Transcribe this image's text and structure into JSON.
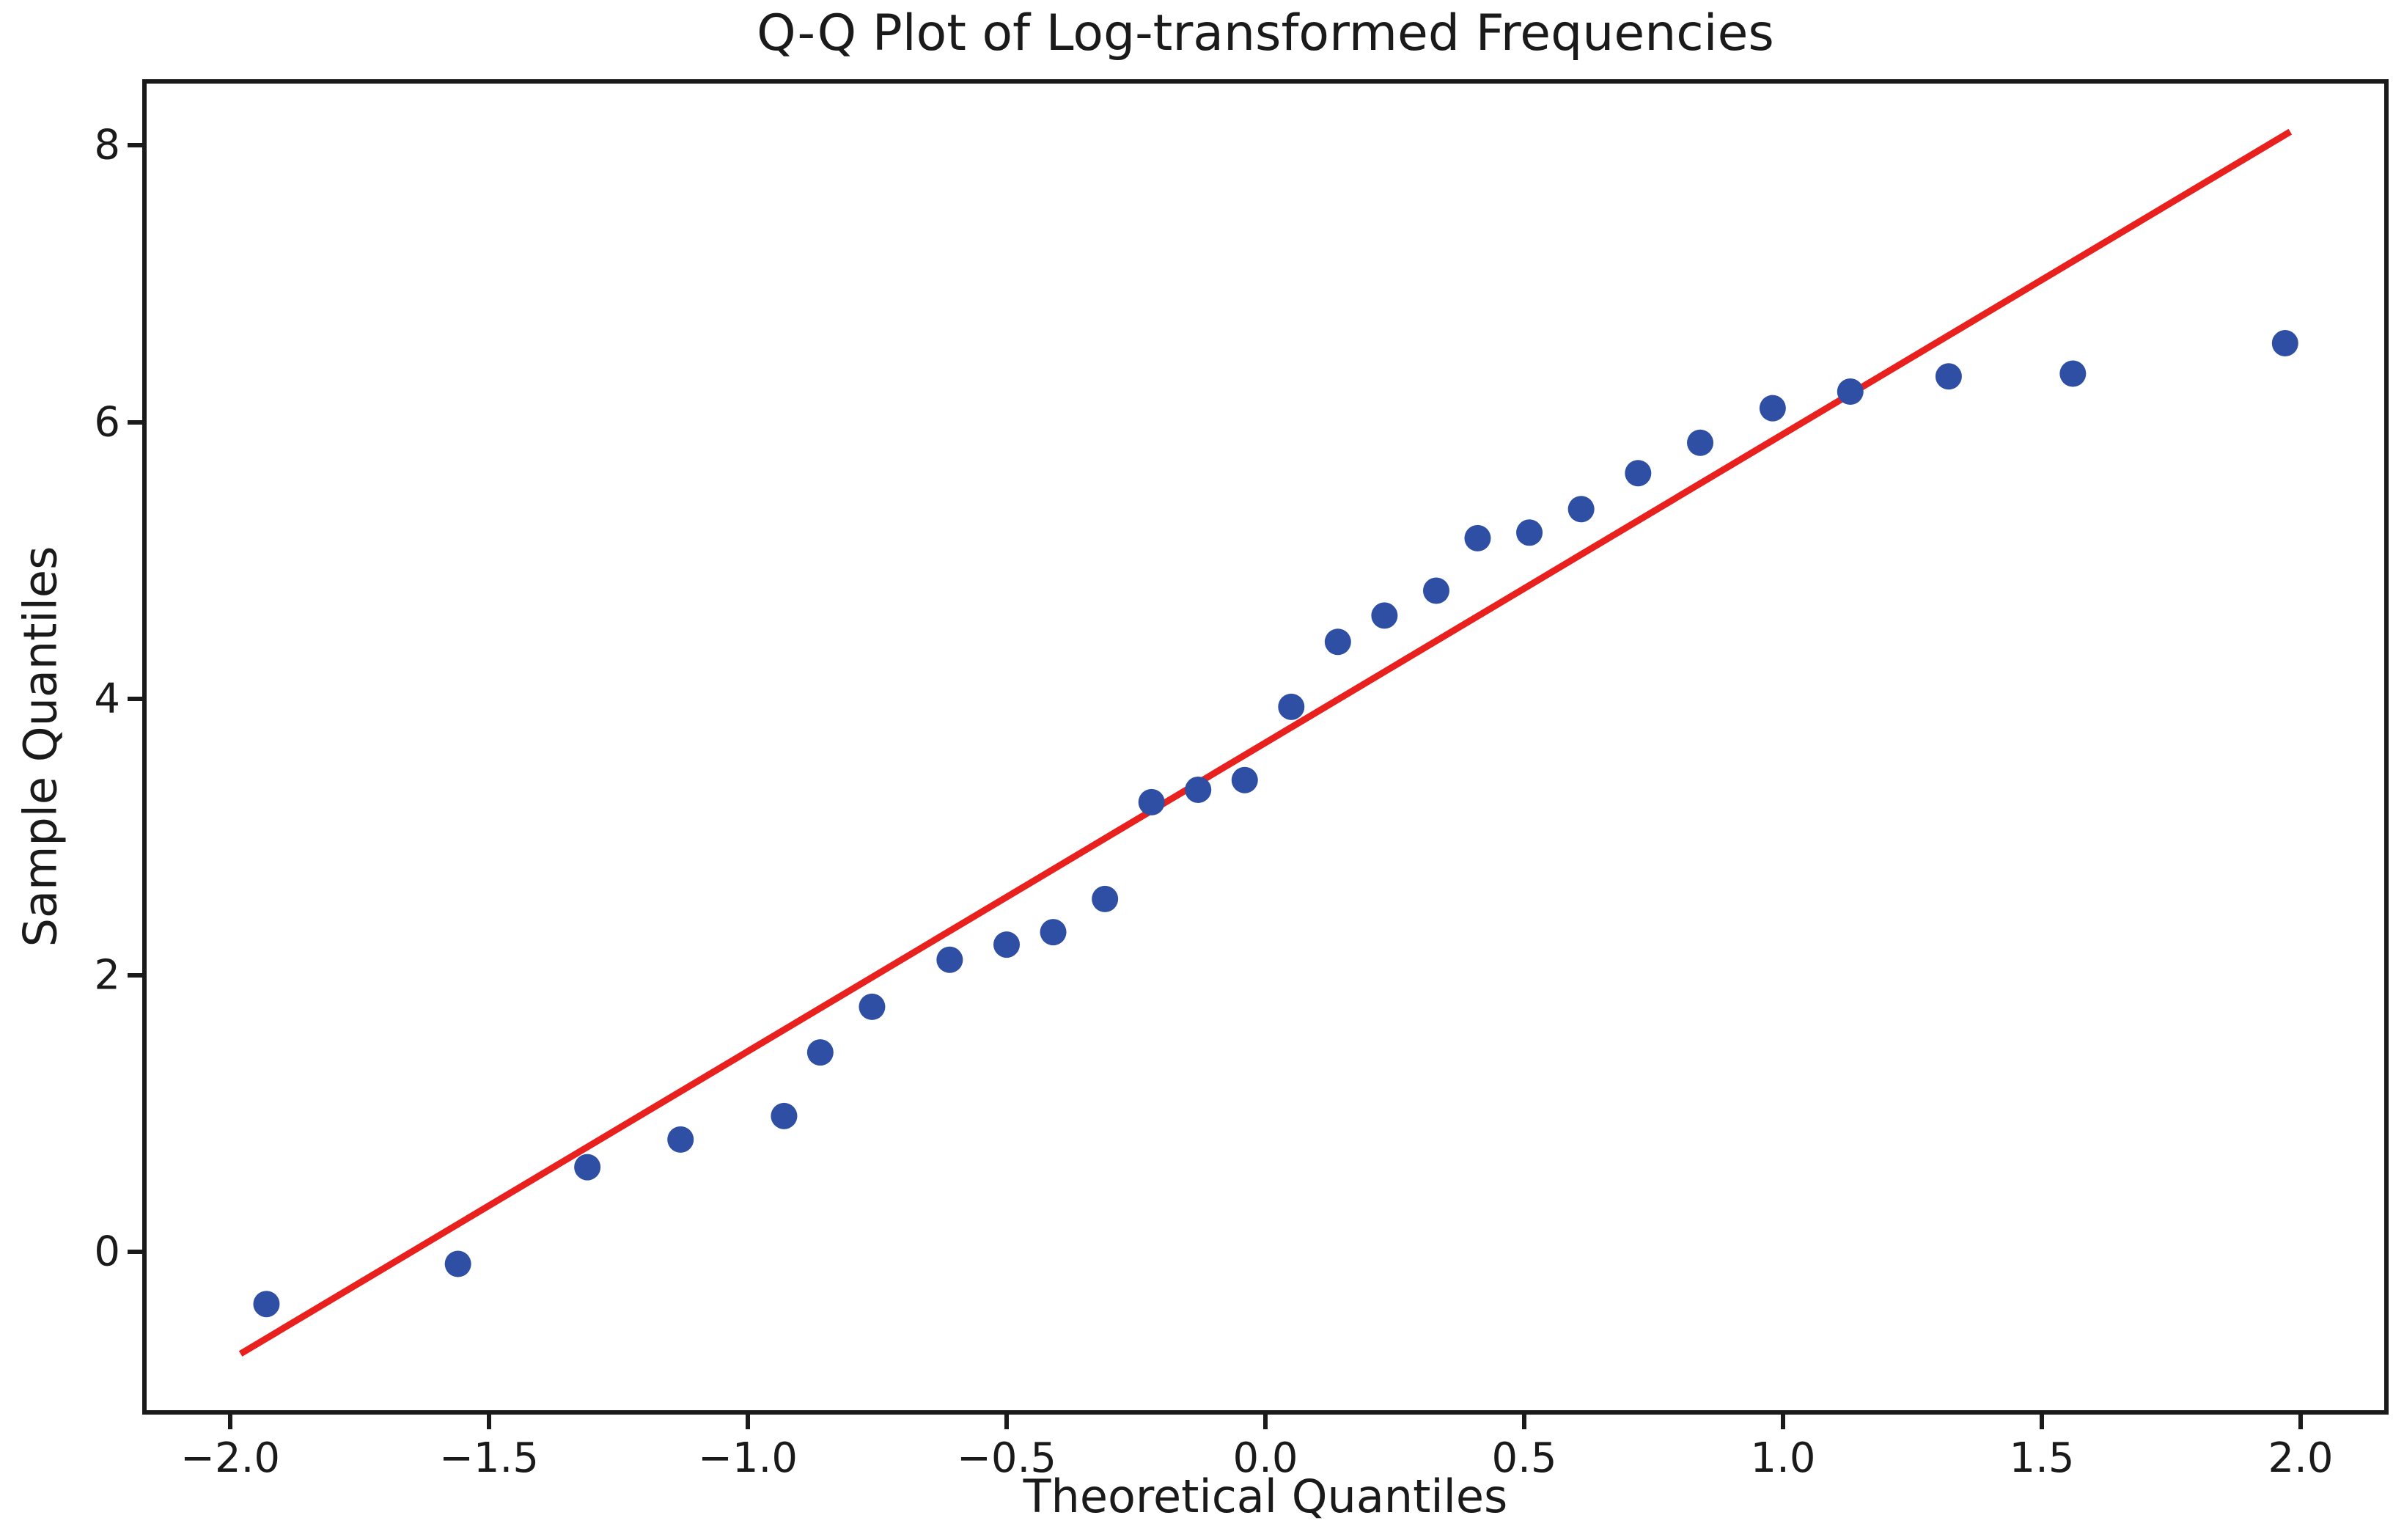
{
  "title": "Q-Q Plot of Log-transformed Frequencies",
  "colors": {
    "marker": "#2F4FA5",
    "fit_line": "#E8201E",
    "text": "#1a1a1a",
    "spine": "#1a1a1a",
    "background": "#ffffff"
  },
  "chart_data": {
    "type": "scatter",
    "title": "Q-Q Plot of Log-transformed Frequencies",
    "xlabel": "Theoretical Quantiles",
    "ylabel": "Sample Quantiles",
    "xlim": [
      -2.17,
      2.17
    ],
    "ylim": [
      -1.18,
      8.48
    ],
    "grid": false,
    "legend": null,
    "x_ticks": [
      -2.0,
      -1.5,
      -1.0,
      -0.5,
      0.0,
      0.5,
      1.0,
      1.5,
      2.0
    ],
    "x_tick_labels": [
      "−2.0",
      "−1.5",
      "−1.0",
      "−0.5",
      "0.0",
      "0.5",
      "1.0",
      "1.5",
      "2.0"
    ],
    "y_ticks": [
      0,
      2,
      4,
      6,
      8
    ],
    "y_tick_labels": [
      "0",
      "2",
      "4",
      "6",
      "8"
    ],
    "series": [
      {
        "name": "sample-vs-theoretical-quantiles",
        "marker_radius_px": 18,
        "points": [
          {
            "x": -1.93,
            "y": -0.38
          },
          {
            "x": -1.56,
            "y": -0.09
          },
          {
            "x": -1.31,
            "y": 0.61
          },
          {
            "x": -1.13,
            "y": 0.81
          },
          {
            "x": -0.93,
            "y": 0.98
          },
          {
            "x": -0.86,
            "y": 1.44
          },
          {
            "x": -0.76,
            "y": 1.77
          },
          {
            "x": -0.61,
            "y": 2.11
          },
          {
            "x": -0.5,
            "y": 2.22
          },
          {
            "x": -0.41,
            "y": 2.31
          },
          {
            "x": -0.31,
            "y": 2.55
          },
          {
            "x": -0.22,
            "y": 3.25
          },
          {
            "x": -0.13,
            "y": 3.34
          },
          {
            "x": -0.04,
            "y": 3.41
          },
          {
            "x": 0.05,
            "y": 3.94
          },
          {
            "x": 0.14,
            "y": 4.41
          },
          {
            "x": 0.23,
            "y": 4.6
          },
          {
            "x": 0.33,
            "y": 4.78
          },
          {
            "x": 0.41,
            "y": 5.16
          },
          {
            "x": 0.51,
            "y": 5.2
          },
          {
            "x": 0.61,
            "y": 5.37
          },
          {
            "x": 0.72,
            "y": 5.63
          },
          {
            "x": 0.84,
            "y": 5.85
          },
          {
            "x": 0.98,
            "y": 6.1
          },
          {
            "x": 1.13,
            "y": 6.22
          },
          {
            "x": 1.32,
            "y": 6.33
          },
          {
            "x": 1.56,
            "y": 6.35
          },
          {
            "x": 1.97,
            "y": 6.57
          }
        ]
      }
    ],
    "fit_line": {
      "x1": -1.98,
      "y1": -0.74,
      "x2": 1.98,
      "y2": 8.1,
      "slope": 2.24,
      "intercept": 3.68,
      "stroke_width_px": 9
    }
  }
}
